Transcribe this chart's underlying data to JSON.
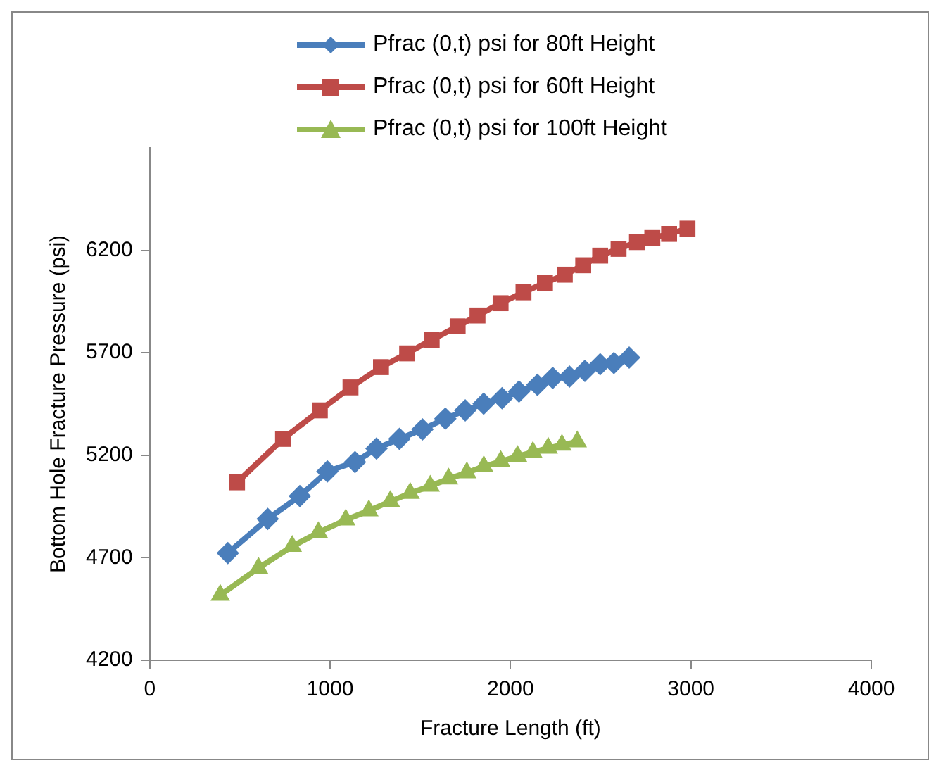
{
  "chart_data": {
    "type": "line",
    "xlabel": "Fracture Length (ft)",
    "ylabel": "Bottom Hole Fracture Pressure (psi)",
    "xlim": [
      0,
      4000
    ],
    "xticks": [
      0,
      1000,
      2000,
      3000,
      4000
    ],
    "ylim": [
      4200,
      6700
    ],
    "yticks": [
      4200,
      4700,
      5200,
      5700,
      6200
    ],
    "grid": false,
    "legend": "top",
    "series": [
      {
        "name": "Pfrac (0,t) psi for 80ft Height",
        "color": "#4a7ebb",
        "marker": "diamond",
        "x": [
          433,
          654,
          832,
          985,
          1138,
          1257,
          1384,
          1512,
          1639,
          1749,
          1851,
          1953,
          2047,
          2149,
          2234,
          2327,
          2412,
          2497,
          2573,
          2658
        ],
        "values": [
          4723,
          4889,
          5001,
          5121,
          5167,
          5233,
          5280,
          5326,
          5379,
          5419,
          5452,
          5478,
          5511,
          5544,
          5577,
          5584,
          5611,
          5644,
          5650,
          5677
        ]
      },
      {
        "name": "Pfrac (0,t) psi for 60ft Height",
        "color": "#be4b48",
        "marker": "square",
        "x": [
          484,
          739,
          943,
          1113,
          1282,
          1427,
          1563,
          1707,
          1817,
          1945,
          2072,
          2191,
          2301,
          2403,
          2497,
          2599,
          2701,
          2786,
          2879,
          2981
        ],
        "values": [
          5068,
          5280,
          5419,
          5531,
          5630,
          5697,
          5763,
          5829,
          5882,
          5942,
          5995,
          6041,
          6081,
          6127,
          6174,
          6207,
          6240,
          6260,
          6280,
          6306
        ]
      },
      {
        "name": "Pfrac (0,t) psi for 100ft Height",
        "color": "#98b954",
        "marker": "triangle",
        "x": [
          391,
          603,
          790,
          935,
          1087,
          1215,
          1334,
          1444,
          1555,
          1657,
          1758,
          1852,
          1946,
          2039,
          2124,
          2209,
          2285,
          2370
        ],
        "values": [
          4518,
          4650,
          4756,
          4823,
          4885,
          4930,
          4975,
          5015,
          5050,
          5085,
          5115,
          5145,
          5170,
          5195,
          5215,
          5235,
          5250,
          5266
        ]
      }
    ]
  }
}
